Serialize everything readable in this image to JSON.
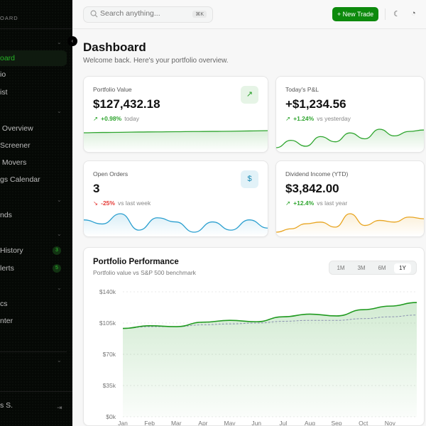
{
  "sidebar": {
    "brand": "OARD",
    "items": [
      {
        "label": "oard",
        "active": true
      },
      {
        "label": "io"
      },
      {
        "label": "ist"
      },
      {
        "label": " Overview"
      },
      {
        "label": "Screener"
      },
      {
        "label": " Movers"
      },
      {
        "label": "gs Calendar"
      },
      {
        "label": "nds"
      },
      {
        "label": "History",
        "badge": "3"
      },
      {
        "label": "lerts",
        "badge": "5"
      },
      {
        "label": "cs"
      },
      {
        "label": "nter"
      }
    ],
    "user": "s S."
  },
  "topbar": {
    "search_placeholder": "Search anything...",
    "shortcut": "⌘K",
    "new_trade": "+  New Trade"
  },
  "page": {
    "title": "Dashboard",
    "subtitle": "Welcome back. Here's your portfolio overview."
  },
  "cards": [
    {
      "label": "Portfolio Value",
      "value": "$127,432.18",
      "change": "+0.98%",
      "context": "today",
      "trend": "up",
      "color": "#2ea52e",
      "icon": "trending-up-icon",
      "spark": [
        50,
        50.2,
        50.3,
        50.5,
        50.6,
        50.7,
        50.8,
        50.9,
        51,
        51.2,
        51.4
      ]
    },
    {
      "label": "Today's P&L",
      "value": "+$1,234.56",
      "change": "+1.24%",
      "context": "vs yesterday",
      "trend": "up",
      "color": "#2ea52e",
      "spark": [
        10,
        20,
        12,
        25,
        18,
        30,
        22,
        35,
        26,
        32,
        34
      ]
    },
    {
      "label": "Open Orders",
      "value": "3",
      "change": "-25%",
      "context": "vs last week",
      "trend": "down",
      "color": "#2a9fcf",
      "icon": "dollar-receipt-icon",
      "spark": [
        22,
        18,
        28,
        12,
        24,
        20,
        10,
        20,
        12,
        22,
        14
      ]
    },
    {
      "label": "Dividend Income (YTD)",
      "value": "$3,842.00",
      "change": "+12.4%",
      "context": "vs last year",
      "trend": "up",
      "color": "#e8a41f",
      "spark": [
        8,
        12,
        18,
        20,
        14,
        30,
        16,
        22,
        20,
        26,
        24
      ]
    }
  ],
  "performance": {
    "title": "Portfolio Performance",
    "subtitle": "Portfolio value vs S&P 500 benchmark",
    "tabs": [
      "1M",
      "3M",
      "6M",
      "1Y"
    ],
    "active_tab": "1Y"
  },
  "chart_data": {
    "type": "area",
    "categories": [
      "Jan",
      "Feb",
      "Mar",
      "Apr",
      "May",
      "Jun",
      "Jul",
      "Aug",
      "Sep",
      "Oct",
      "Nov"
    ],
    "series": [
      {
        "values": [
          99,
          102,
          101,
          106,
          108,
          106.5,
          112,
          115,
          113,
          120,
          124
        ],
        "color": "#1f9a1f",
        "style": "solid-area"
      },
      {
        "values": [
          99,
          101,
          101,
          103,
          104,
          105,
          107,
          108,
          108,
          110,
          112
        ],
        "color": "#8a8fb0",
        "style": "dashed"
      }
    ],
    "yticks": [
      "$0k",
      "$35k",
      "$70k",
      "$105k",
      "$140k"
    ],
    "ylim": [
      0,
      140
    ],
    "grid": true
  }
}
